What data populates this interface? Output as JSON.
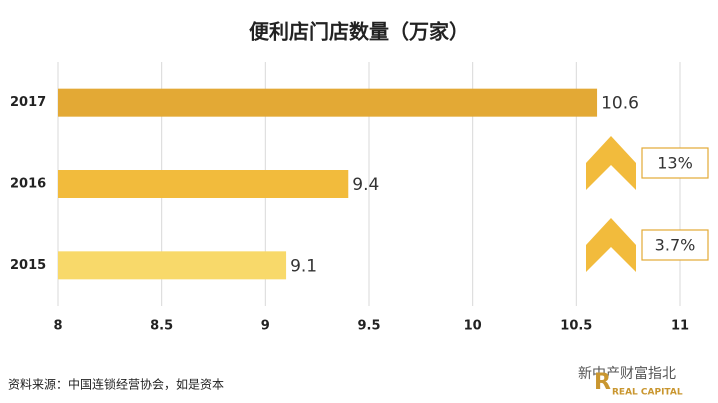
{
  "chart_data": {
    "type": "barh",
    "title": "便利店门店数量（万家）",
    "categories": [
      "2017",
      "2016",
      "2015"
    ],
    "values": [
      10.6,
      9.4,
      9.1
    ],
    "colors": [
      "#e3a935",
      "#f2bb3c",
      "#f8d96a"
    ],
    "xlim": [
      8,
      11
    ],
    "xticks": [
      8,
      8.5,
      9,
      9.5,
      10,
      10.5,
      11
    ],
    "grid": true,
    "annotations": [
      "13%",
      "3.7%"
    ],
    "source": "资料来源：中国连锁经营协会，如是资本",
    "watermark": [
      "新中产财富指北",
      "REAL CAPITAL"
    ]
  }
}
